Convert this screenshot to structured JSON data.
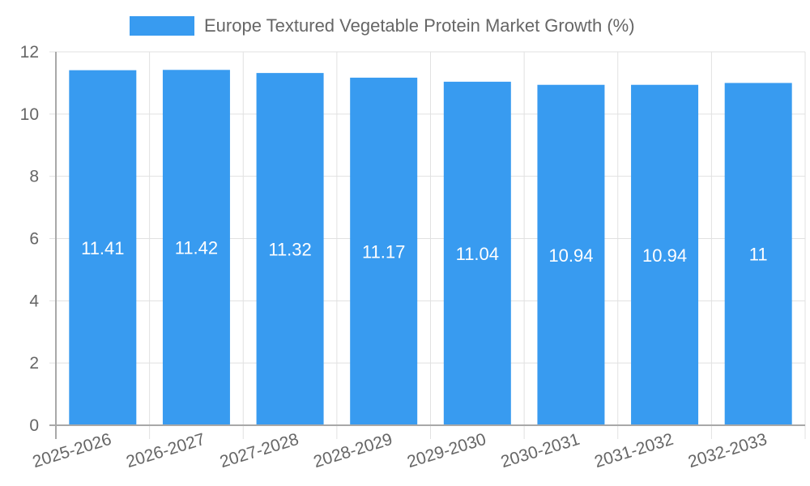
{
  "chart_data": {
    "type": "bar",
    "title": "",
    "legend": [
      "Europe Textured Vegetable Protein Market Growth (%)"
    ],
    "legend_position": "top",
    "categories": [
      "2025-2026",
      "2026-2027",
      "2027-2028",
      "2028-2029",
      "2029-2030",
      "2030-2031",
      "2031-2032",
      "2032-2033"
    ],
    "series": [
      {
        "name": "Europe Textured Vegetable Protein Market Growth (%)",
        "values": [
          11.41,
          11.42,
          11.32,
          11.17,
          11.04,
          10.94,
          10.94,
          11
        ],
        "color": "#389bf0"
      }
    ],
    "data_labels": [
      "11.41",
      "11.42",
      "11.32",
      "11.17",
      "11.04",
      "10.94",
      "10.94",
      "11"
    ],
    "xlabel": "",
    "ylabel": "",
    "ylim": [
      0,
      12
    ],
    "yticks": [
      0,
      2,
      4,
      6,
      8,
      10,
      12
    ],
    "grid": true
  },
  "legend": {
    "label": "Europe Textured Vegetable Protein Market Growth (%)",
    "color": "#389bf0"
  },
  "colors": {
    "bar": "#389bf0",
    "grid": "#e1e1e1",
    "axis": "#a8a8a8",
    "text": "#666666",
    "label": "#ffffff"
  }
}
